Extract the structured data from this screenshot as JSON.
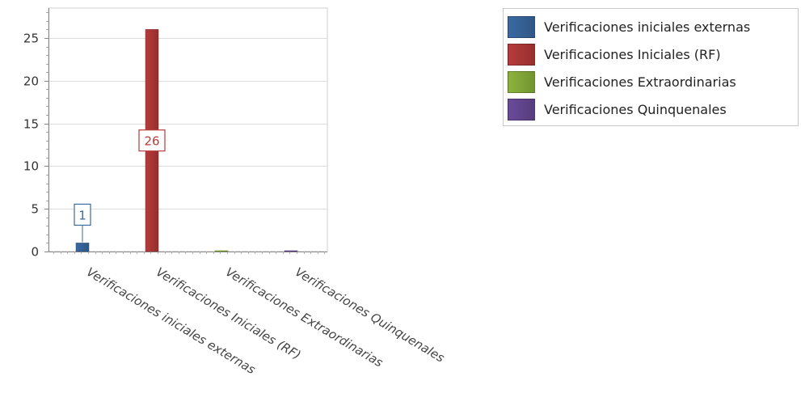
{
  "chart_data": {
    "type": "bar",
    "categories": [
      "Verificaciones iniciales externas",
      "Verificaciones Iniciales (RF)",
      "Verificaciones Extraordinarias",
      "Verificaciones Quinquenales"
    ],
    "series": [
      {
        "name": "Verificaciones iniciales externas",
        "category_index": 0,
        "value": 1,
        "color": "#3a6aa3",
        "data_label": "1"
      },
      {
        "name": "Verificaciones Iniciales (RF)",
        "category_index": 1,
        "value": 26,
        "color": "#b83b3b",
        "data_label": "26"
      },
      {
        "name": "Verificaciones Extraordinarias",
        "category_index": 2,
        "value": 0,
        "color": "#8cb43c",
        "data_label": null
      },
      {
        "name": "Verificaciones Quinquenales",
        "category_index": 3,
        "value": 0,
        "color": "#6a4a9a",
        "data_label": null
      }
    ],
    "yticks": [
      "0",
      "5",
      "10",
      "15",
      "20",
      "25"
    ],
    "ylim": [
      0,
      28.5
    ],
    "grid": true,
    "legend_position": "top-right",
    "title": "",
    "xlabel": "",
    "ylabel": ""
  },
  "legend": {
    "items": [
      {
        "label": "Verificaciones iniciales externas",
        "color": "#3a6aa3"
      },
      {
        "label": "Verificaciones Iniciales (RF)",
        "color": "#b83b3b"
      },
      {
        "label": "Verificaciones Extraordinarias",
        "color": "#8cb43c"
      },
      {
        "label": "Verificaciones Quinquenales",
        "color": "#6a4a9a"
      }
    ]
  }
}
